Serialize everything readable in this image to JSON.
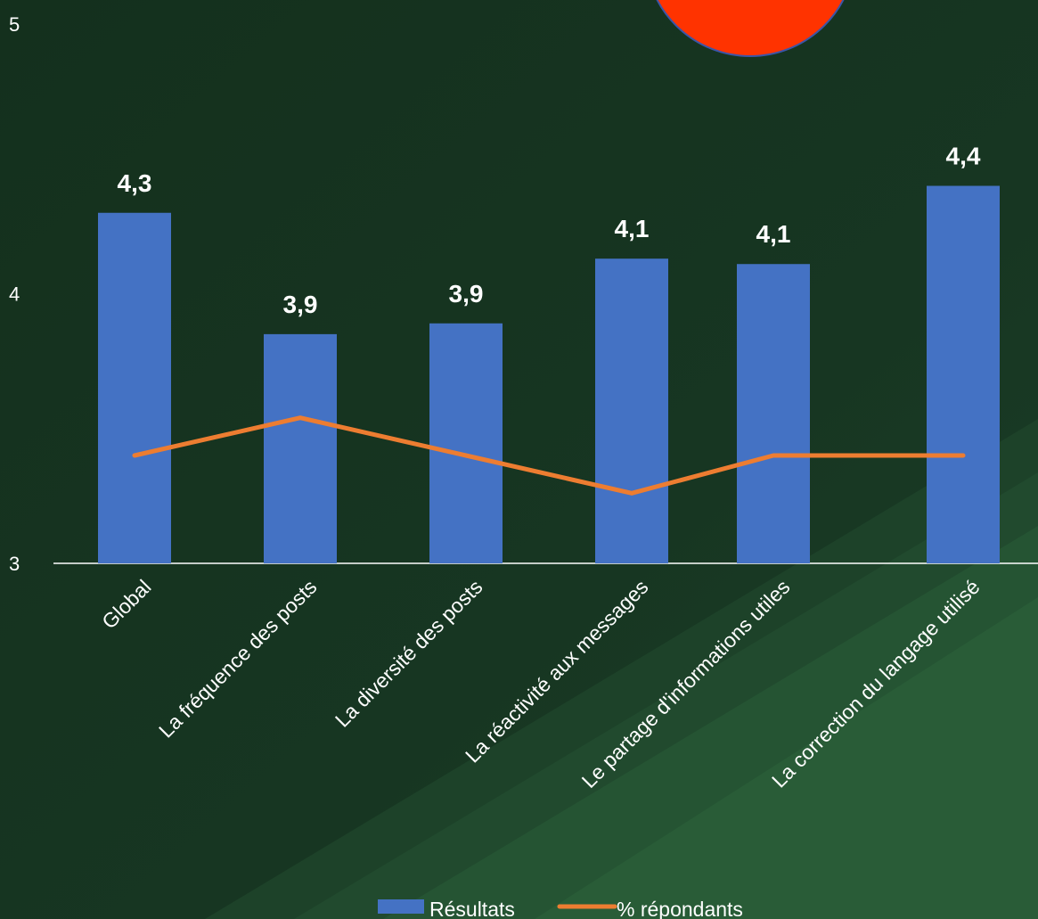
{
  "chart_data": {
    "type": "bar",
    "categories": [
      "Global",
      "La fréquence des posts",
      "La diversité des posts",
      "La réactivité aux messages",
      "Le partage d'informations utiles",
      "La correction du langage utilisé"
    ],
    "series": [
      {
        "name": "Résultats",
        "type": "bar",
        "values": [
          4.3,
          3.85,
          3.89,
          4.13,
          4.11,
          4.4
        ],
        "labels": [
          "4,3",
          "3,9",
          "3,9",
          "4,1",
          "4,1",
          "4,4"
        ],
        "color": "#4472C4"
      },
      {
        "name": "% répondants",
        "type": "line",
        "values": [
          3.4,
          3.54,
          3.4,
          3.26,
          3.4,
          3.4
        ],
        "color": "#ED7D31"
      }
    ],
    "yticks": [
      "3",
      "4",
      "5"
    ],
    "ylim": [
      3,
      5
    ],
    "legend": "bottom",
    "grid": false
  },
  "colors": {
    "background": "#163320",
    "accent_green": "#2a5e38",
    "decoration_circle": "#ff3300"
  }
}
